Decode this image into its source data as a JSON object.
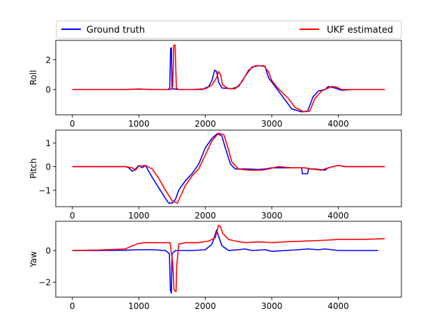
{
  "legend": {
    "entries": [
      {
        "label": "Ground truth",
        "color": "#0000ff"
      },
      {
        "label": "UKF estimated",
        "color": "#ff0000"
      }
    ],
    "placement": "top (above first panel), expanded"
  },
  "chart_data": [
    {
      "type": "line",
      "ylabel": "Roll",
      "xlim": [
        -250,
        4950
      ],
      "ylim": [
        -1.7,
        3.3
      ],
      "xticks": [
        0,
        1000,
        2000,
        3000,
        4000
      ],
      "yticks": [
        0,
        2
      ],
      "grid": false,
      "series": [
        {
          "name": "Ground truth",
          "color": "#0000ff",
          "points": [
            [
              0,
              0
            ],
            [
              800,
              0
            ],
            [
              1000,
              0.03
            ],
            [
              1200,
              0
            ],
            [
              1440,
              0
            ],
            [
              1465,
              0.1
            ],
            [
              1478,
              2.75
            ],
            [
              1490,
              2.8
            ],
            [
              1500,
              0.05
            ],
            [
              1600,
              0
            ],
            [
              1800,
              0
            ],
            [
              1950,
              0
            ],
            [
              2050,
              0.2
            ],
            [
              2100,
              0.6
            ],
            [
              2140,
              1.3
            ],
            [
              2170,
              1.2
            ],
            [
              2200,
              0.5
            ],
            [
              2250,
              0.1
            ],
            [
              2400,
              0.05
            ],
            [
              2500,
              0.2
            ],
            [
              2600,
              0.9
            ],
            [
              2700,
              1.5
            ],
            [
              2800,
              1.6
            ],
            [
              2900,
              1.55
            ],
            [
              2950,
              0.8
            ],
            [
              3050,
              0.2
            ],
            [
              3200,
              -0.7
            ],
            [
              3300,
              -1.3
            ],
            [
              3450,
              -1.5
            ],
            [
              3540,
              -1.45
            ],
            [
              3620,
              -0.5
            ],
            [
              3700,
              -0.1
            ],
            [
              3800,
              0
            ],
            [
              3850,
              0.2
            ],
            [
              3950,
              0.1
            ],
            [
              4050,
              -0.05
            ],
            [
              4200,
              0
            ],
            [
              4700,
              0
            ]
          ]
        },
        {
          "name": "UKF estimated",
          "color": "#ff0000",
          "points": [
            [
              0,
              0
            ],
            [
              800,
              0
            ],
            [
              1000,
              0.02
            ],
            [
              1200,
              0
            ],
            [
              1480,
              0
            ],
            [
              1510,
              0.2
            ],
            [
              1525,
              2.95
            ],
            [
              1545,
              3.0
            ],
            [
              1565,
              0.1
            ],
            [
              1600,
              0
            ],
            [
              1800,
              0
            ],
            [
              2000,
              0.05
            ],
            [
              2100,
              0.3
            ],
            [
              2170,
              0.8
            ],
            [
              2200,
              1.2
            ],
            [
              2230,
              1.0
            ],
            [
              2260,
              0.3
            ],
            [
              2350,
              0.05
            ],
            [
              2450,
              0.05
            ],
            [
              2550,
              0.5
            ],
            [
              2650,
              1.3
            ],
            [
              2750,
              1.6
            ],
            [
              2880,
              1.6
            ],
            [
              2950,
              1.2
            ],
            [
              3000,
              0.6
            ],
            [
              3100,
              0.05
            ],
            [
              3250,
              -0.6
            ],
            [
              3350,
              -1.2
            ],
            [
              3480,
              -1.5
            ],
            [
              3570,
              -1.45
            ],
            [
              3650,
              -0.6
            ],
            [
              3750,
              -0.1
            ],
            [
              3850,
              0.1
            ],
            [
              3900,
              0.2
            ],
            [
              3980,
              0.15
            ],
            [
              4050,
              0
            ],
            [
              4200,
              0
            ],
            [
              4700,
              0
            ]
          ]
        }
      ]
    },
    {
      "type": "line",
      "ylabel": "Pitch",
      "xlim": [
        -250,
        4950
      ],
      "ylim": [
        -1.7,
        1.55
      ],
      "xticks": [
        0,
        1000,
        2000,
        3000,
        4000
      ],
      "yticks": [
        -1,
        0,
        1
      ],
      "grid": false,
      "series": [
        {
          "name": "Ground truth",
          "color": "#0000ff",
          "points": [
            [
              0,
              0
            ],
            [
              800,
              0
            ],
            [
              850,
              -0.05
            ],
            [
              900,
              -0.2
            ],
            [
              950,
              -0.1
            ],
            [
              1000,
              0.05
            ],
            [
              1050,
              -0.05
            ],
            [
              1100,
              0.05
            ],
            [
              1150,
              -0.2
            ],
            [
              1200,
              -0.45
            ],
            [
              1300,
              -0.9
            ],
            [
              1400,
              -1.35
            ],
            [
              1450,
              -1.55
            ],
            [
              1500,
              -1.55
            ],
            [
              1550,
              -1.4
            ],
            [
              1600,
              -1.0
            ],
            [
              1700,
              -0.6
            ],
            [
              1800,
              -0.3
            ],
            [
              1900,
              0.1
            ],
            [
              2000,
              0.8
            ],
            [
              2100,
              1.2
            ],
            [
              2180,
              1.4
            ],
            [
              2250,
              1.3
            ],
            [
              2300,
              0.8
            ],
            [
              2380,
              0.1
            ],
            [
              2450,
              -0.1
            ],
            [
              2600,
              -0.1
            ],
            [
              2800,
              -0.12
            ],
            [
              2900,
              -0.1
            ],
            [
              3000,
              -0.05
            ],
            [
              3200,
              -0.05
            ],
            [
              3450,
              -0.05
            ],
            [
              3460,
              -0.3
            ],
            [
              3540,
              -0.3
            ],
            [
              3550,
              -0.1
            ],
            [
              3650,
              -0.1
            ],
            [
              3800,
              -0.15
            ],
            [
              3850,
              -0.05
            ],
            [
              4000,
              0.05
            ],
            [
              4100,
              0
            ],
            [
              4700,
              0
            ]
          ]
        },
        {
          "name": "UKF estimated",
          "color": "#ff0000",
          "points": [
            [
              0,
              0
            ],
            [
              800,
              0
            ],
            [
              900,
              -0.05
            ],
            [
              950,
              -0.15
            ],
            [
              1000,
              0.02
            ],
            [
              1100,
              0.05
            ],
            [
              1200,
              -0.1
            ],
            [
              1300,
              -0.5
            ],
            [
              1400,
              -1.0
            ],
            [
              1500,
              -1.45
            ],
            [
              1580,
              -1.55
            ],
            [
              1620,
              -1.3
            ],
            [
              1700,
              -0.8
            ],
            [
              1800,
              -0.4
            ],
            [
              1900,
              -0.1
            ],
            [
              2000,
              0.5
            ],
            [
              2100,
              1.1
            ],
            [
              2200,
              1.42
            ],
            [
              2280,
              1.35
            ],
            [
              2330,
              0.9
            ],
            [
              2400,
              0.2
            ],
            [
              2500,
              -0.1
            ],
            [
              2650,
              -0.15
            ],
            [
              2850,
              -0.15
            ],
            [
              2950,
              -0.1
            ],
            [
              3100,
              0
            ],
            [
              3300,
              -0.05
            ],
            [
              3500,
              -0.05
            ],
            [
              3600,
              -0.1
            ],
            [
              3750,
              -0.15
            ],
            [
              3850,
              -0.05
            ],
            [
              4000,
              0.05
            ],
            [
              4100,
              0
            ],
            [
              4700,
              0
            ]
          ]
        }
      ]
    },
    {
      "type": "line",
      "ylabel": "Yaw",
      "xlim": [
        -250,
        4950
      ],
      "ylim": [
        -2.95,
        1.85
      ],
      "xticks": [
        0,
        1000,
        2000,
        3000,
        4000
      ],
      "yticks": [
        -2,
        0
      ],
      "grid": false,
      "series": [
        {
          "name": "Ground truth",
          "color": "#0000ff",
          "points": [
            [
              0,
              0
            ],
            [
              400,
              0
            ],
            [
              800,
              0.02
            ],
            [
              1000,
              0.05
            ],
            [
              1200,
              0.05
            ],
            [
              1400,
              0
            ],
            [
              1460,
              -0.2
            ],
            [
              1475,
              -2.5
            ],
            [
              1490,
              -2.7
            ],
            [
              1500,
              -0.2
            ],
            [
              1550,
              0
            ],
            [
              1800,
              0
            ],
            [
              2000,
              0.05
            ],
            [
              2100,
              0.4
            ],
            [
              2140,
              0.9
            ],
            [
              2170,
              1.3
            ],
            [
              2200,
              0.9
            ],
            [
              2250,
              0.3
            ],
            [
              2350,
              0
            ],
            [
              2500,
              0.05
            ],
            [
              2600,
              0.1
            ],
            [
              2700,
              0
            ],
            [
              2900,
              0.05
            ],
            [
              3000,
              -0.05
            ],
            [
              3200,
              0
            ],
            [
              3400,
              0.05
            ],
            [
              3550,
              0.1
            ],
            [
              3700,
              0.05
            ],
            [
              3800,
              0.1
            ],
            [
              3900,
              0.05
            ],
            [
              4000,
              0
            ],
            [
              4200,
              0
            ],
            [
              4600,
              0
            ]
          ]
        },
        {
          "name": "UKF estimated",
          "color": "#ff0000",
          "points": [
            [
              0,
              0
            ],
            [
              400,
              0.03
            ],
            [
              800,
              0.1
            ],
            [
              900,
              0.3
            ],
            [
              1000,
              0.45
            ],
            [
              1100,
              0.5
            ],
            [
              1200,
              0.5
            ],
            [
              1400,
              0.5
            ],
            [
              1470,
              0.5
            ],
            [
              1510,
              -0.8
            ],
            [
              1530,
              -2.5
            ],
            [
              1560,
              -2.6
            ],
            [
              1570,
              -1.0
            ],
            [
              1600,
              0.4
            ],
            [
              1700,
              0.5
            ],
            [
              1900,
              0.5
            ],
            [
              2050,
              0.6
            ],
            [
              2150,
              0.8
            ],
            [
              2200,
              1.6
            ],
            [
              2230,
              1.5
            ],
            [
              2260,
              1.1
            ],
            [
              2350,
              0.7
            ],
            [
              2450,
              0.6
            ],
            [
              2600,
              0.5
            ],
            [
              2800,
              0.55
            ],
            [
              3000,
              0.5
            ],
            [
              3200,
              0.55
            ],
            [
              3500,
              0.6
            ],
            [
              3800,
              0.65
            ],
            [
              4000,
              0.7
            ],
            [
              4400,
              0.7
            ],
            [
              4700,
              0.75
            ]
          ]
        }
      ]
    }
  ]
}
